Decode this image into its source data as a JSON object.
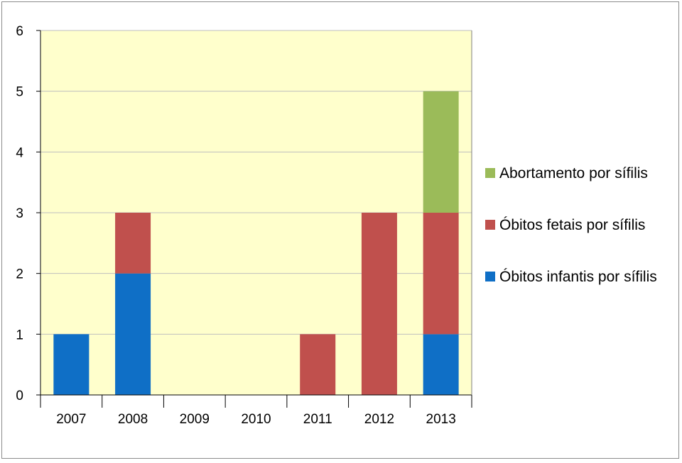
{
  "chart_data": {
    "type": "bar",
    "stacked": true,
    "categories": [
      "2007",
      "2008",
      "2009",
      "2010",
      "2011",
      "2012",
      "2013"
    ],
    "series": [
      {
        "name": "Óbitos infantis por sífilis",
        "color": "#0f6fc6",
        "values": [
          1,
          2,
          0,
          0,
          0,
          0,
          1
        ]
      },
      {
        "name": "Óbitos fetais por sífilis",
        "color": "#c0504d",
        "values": [
          0,
          1,
          0,
          0,
          1,
          3,
          2
        ]
      },
      {
        "name": "Abortamento por sífilis",
        "color": "#9bbb59",
        "values": [
          0,
          0,
          0,
          0,
          0,
          0,
          2
        ]
      }
    ],
    "ylim": [
      0,
      6
    ],
    "yticks": [
      0,
      1,
      2,
      3,
      4,
      5,
      6
    ],
    "grid": true,
    "plot_background": "#ffffcc",
    "legend_position": "right",
    "legend_order": [
      2,
      1,
      0
    ]
  }
}
